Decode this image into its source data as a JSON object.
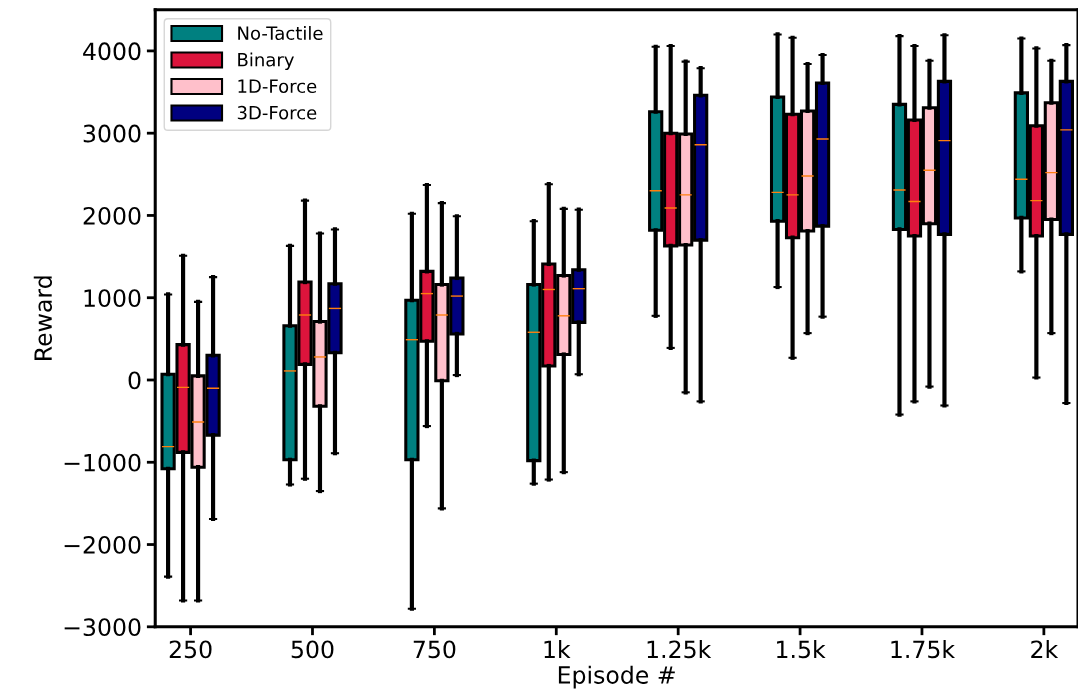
{
  "chart_data": {
    "type": "box",
    "xlabel": "Episode #",
    "ylabel": "Reward",
    "categories": [
      "250",
      "500",
      "750",
      "1k",
      "1.25k",
      "1.5k",
      "1.75k",
      "2k"
    ],
    "ylim": [
      -3000,
      4500
    ],
    "yticks": [
      {
        "value": -3000,
        "label": "−3000"
      },
      {
        "value": -2000,
        "label": "−2000"
      },
      {
        "value": -1000,
        "label": "−1000"
      },
      0,
      1000,
      2000,
      3000,
      4000
    ],
    "grid": false,
    "legend": "top left",
    "series": [
      {
        "name": "No-Tactile",
        "color": "#008080",
        "boxes": [
          {
            "low": -2390,
            "q1": -1080,
            "median": -810,
            "q3": 70,
            "high": 1040
          },
          {
            "low": -1270,
            "q1": -970,
            "median": 110,
            "q3": 660,
            "high": 1630
          },
          {
            "low": -2780,
            "q1": -970,
            "median": 490,
            "q3": 970,
            "high": 2020
          },
          {
            "low": -1260,
            "q1": -980,
            "median": 580,
            "q3": 1160,
            "high": 1930
          },
          {
            "low": 780,
            "q1": 1820,
            "median": 2300,
            "q3": 3260,
            "high": 4050
          },
          {
            "low": 1130,
            "q1": 1930,
            "median": 2280,
            "q3": 3440,
            "high": 4200
          },
          {
            "low": -420,
            "q1": 1830,
            "median": 2310,
            "q3": 3350,
            "high": 4180
          },
          {
            "low": 1320,
            "q1": 1970,
            "median": 2440,
            "q3": 3490,
            "high": 4150
          }
        ]
      },
      {
        "name": "Binary",
        "color": "#dc143c",
        "boxes": [
          {
            "low": -2680,
            "q1": -880,
            "median": -90,
            "q3": 430,
            "high": 1510
          },
          {
            "low": -1200,
            "q1": 190,
            "median": 790,
            "q3": 1190,
            "high": 2180
          },
          {
            "low": -560,
            "q1": 470,
            "median": 1050,
            "q3": 1320,
            "high": 2370
          },
          {
            "low": -1210,
            "q1": 170,
            "median": 1100,
            "q3": 1410,
            "high": 2380
          },
          {
            "low": 390,
            "q1": 1630,
            "median": 2090,
            "q3": 3000,
            "high": 4060
          },
          {
            "low": 270,
            "q1": 1730,
            "median": 2250,
            "q3": 3230,
            "high": 4160
          },
          {
            "low": -260,
            "q1": 1750,
            "median": 2170,
            "q3": 3160,
            "high": 4060
          },
          {
            "low": 30,
            "q1": 1750,
            "median": 2180,
            "q3": 3090,
            "high": 4030
          }
        ]
      },
      {
        "name": "1D-Force",
        "color": "#ffc0cb",
        "boxes": [
          {
            "low": -2680,
            "q1": -1060,
            "median": -510,
            "q3": 50,
            "high": 950
          },
          {
            "low": -1350,
            "q1": -320,
            "median": 280,
            "q3": 710,
            "high": 1780
          },
          {
            "low": -1560,
            "q1": -10,
            "median": 790,
            "q3": 1160,
            "high": 2150
          },
          {
            "low": -1120,
            "q1": 310,
            "median": 780,
            "q3": 1270,
            "high": 2080
          },
          {
            "low": -150,
            "q1": 1640,
            "median": 2250,
            "q3": 2990,
            "high": 3870
          },
          {
            "low": 570,
            "q1": 1810,
            "median": 2480,
            "q3": 3270,
            "high": 3840
          },
          {
            "low": -80,
            "q1": 1900,
            "median": 2550,
            "q3": 3310,
            "high": 3880
          },
          {
            "low": 570,
            "q1": 1950,
            "median": 2520,
            "q3": 3370,
            "high": 3880
          }
        ]
      },
      {
        "name": "3D-Force",
        "color": "#000080",
        "boxes": [
          {
            "low": -1690,
            "q1": -670,
            "median": -100,
            "q3": 300,
            "high": 1250
          },
          {
            "low": -890,
            "q1": 330,
            "median": 870,
            "q3": 1170,
            "high": 1830
          },
          {
            "low": 60,
            "q1": 560,
            "median": 1020,
            "q3": 1240,
            "high": 1990
          },
          {
            "low": 70,
            "q1": 700,
            "median": 1110,
            "q3": 1340,
            "high": 2070
          },
          {
            "low": -260,
            "q1": 1700,
            "median": 2860,
            "q3": 3460,
            "high": 3790
          },
          {
            "low": 770,
            "q1": 1870,
            "median": 2930,
            "q3": 3610,
            "high": 3950
          },
          {
            "low": -310,
            "q1": 1770,
            "median": 2910,
            "q3": 3630,
            "high": 4190
          },
          {
            "low": -280,
            "q1": 1770,
            "median": 3040,
            "q3": 3630,
            "high": 4070
          }
        ]
      }
    ]
  }
}
